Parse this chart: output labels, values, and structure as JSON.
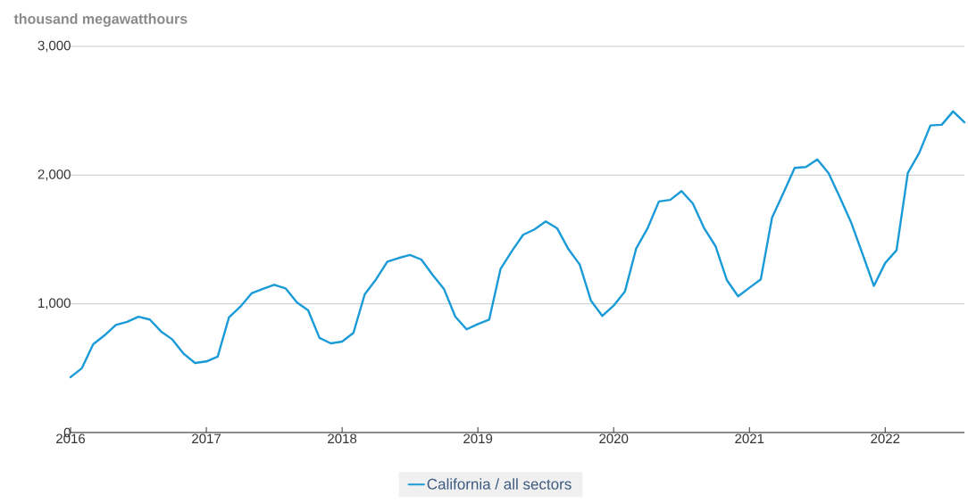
{
  "chart_data": {
    "type": "line",
    "ylabel": "thousand megawatthours",
    "x": [
      "2016-01",
      "2016-02",
      "2016-03",
      "2016-04",
      "2016-05",
      "2016-06",
      "2016-07",
      "2016-08",
      "2016-09",
      "2016-10",
      "2016-11",
      "2016-12",
      "2017-01",
      "2017-02",
      "2017-03",
      "2017-04",
      "2017-05",
      "2017-06",
      "2017-07",
      "2017-08",
      "2017-09",
      "2017-10",
      "2017-11",
      "2017-12",
      "2018-01",
      "2018-02",
      "2018-03",
      "2018-04",
      "2018-05",
      "2018-06",
      "2018-07",
      "2018-08",
      "2018-09",
      "2018-10",
      "2018-11",
      "2018-12",
      "2019-01",
      "2019-02",
      "2019-03",
      "2019-04",
      "2019-05",
      "2019-06",
      "2019-07",
      "2019-08",
      "2019-09",
      "2019-10",
      "2019-11",
      "2019-12",
      "2020-01",
      "2020-02",
      "2020-03",
      "2020-04",
      "2020-05",
      "2020-06",
      "2020-07",
      "2020-08",
      "2020-09",
      "2020-10",
      "2020-11",
      "2020-12",
      "2021-01",
      "2021-02",
      "2021-03",
      "2021-04",
      "2021-05",
      "2021-06",
      "2021-07",
      "2021-08",
      "2021-09",
      "2021-10",
      "2021-11",
      "2021-12",
      "2022-01",
      "2022-02",
      "2022-03",
      "2022-04",
      "2022-05",
      "2022-06",
      "2022-07",
      "2022-08"
    ],
    "series": [
      {
        "name": "California / all sectors",
        "color": "#1a9bd7",
        "values": [
          430,
          500,
          686,
          755,
          836,
          860,
          900,
          878,
          785,
          723,
          612,
          540,
          552,
          589,
          894,
          977,
          1081,
          1116,
          1148,
          1120,
          1012,
          949,
          735,
          693,
          707,
          774,
          1074,
          1190,
          1328,
          1356,
          1379,
          1344,
          1224,
          1116,
          901,
          802,
          843,
          878,
          1270,
          1409,
          1536,
          1578,
          1640,
          1587,
          1425,
          1305,
          1023,
          906,
          986,
          1097,
          1432,
          1587,
          1795,
          1807,
          1876,
          1779,
          1587,
          1448,
          1185,
          1058,
          1125,
          1190,
          1670,
          1860,
          2056,
          2063,
          2121,
          2015,
          1825,
          1629,
          1386,
          1139,
          1317,
          1416,
          2017,
          2171,
          2386,
          2391,
          2495,
          2410
        ]
      }
    ],
    "xlim": [
      "2016-01",
      "2022-08"
    ],
    "xticks": [
      "2016",
      "2017",
      "2018",
      "2019",
      "2020",
      "2021",
      "2022"
    ],
    "ylim": [
      0,
      3000
    ],
    "yticks": [
      0,
      {
        "value": 1000,
        "label": "1,000"
      },
      {
        "value": 2000,
        "label": "2,000"
      },
      {
        "value": 3000,
        "label": "3,000"
      }
    ],
    "grid": "y",
    "legend": "bottom",
    "marker": "none",
    "line_style": "solid"
  }
}
